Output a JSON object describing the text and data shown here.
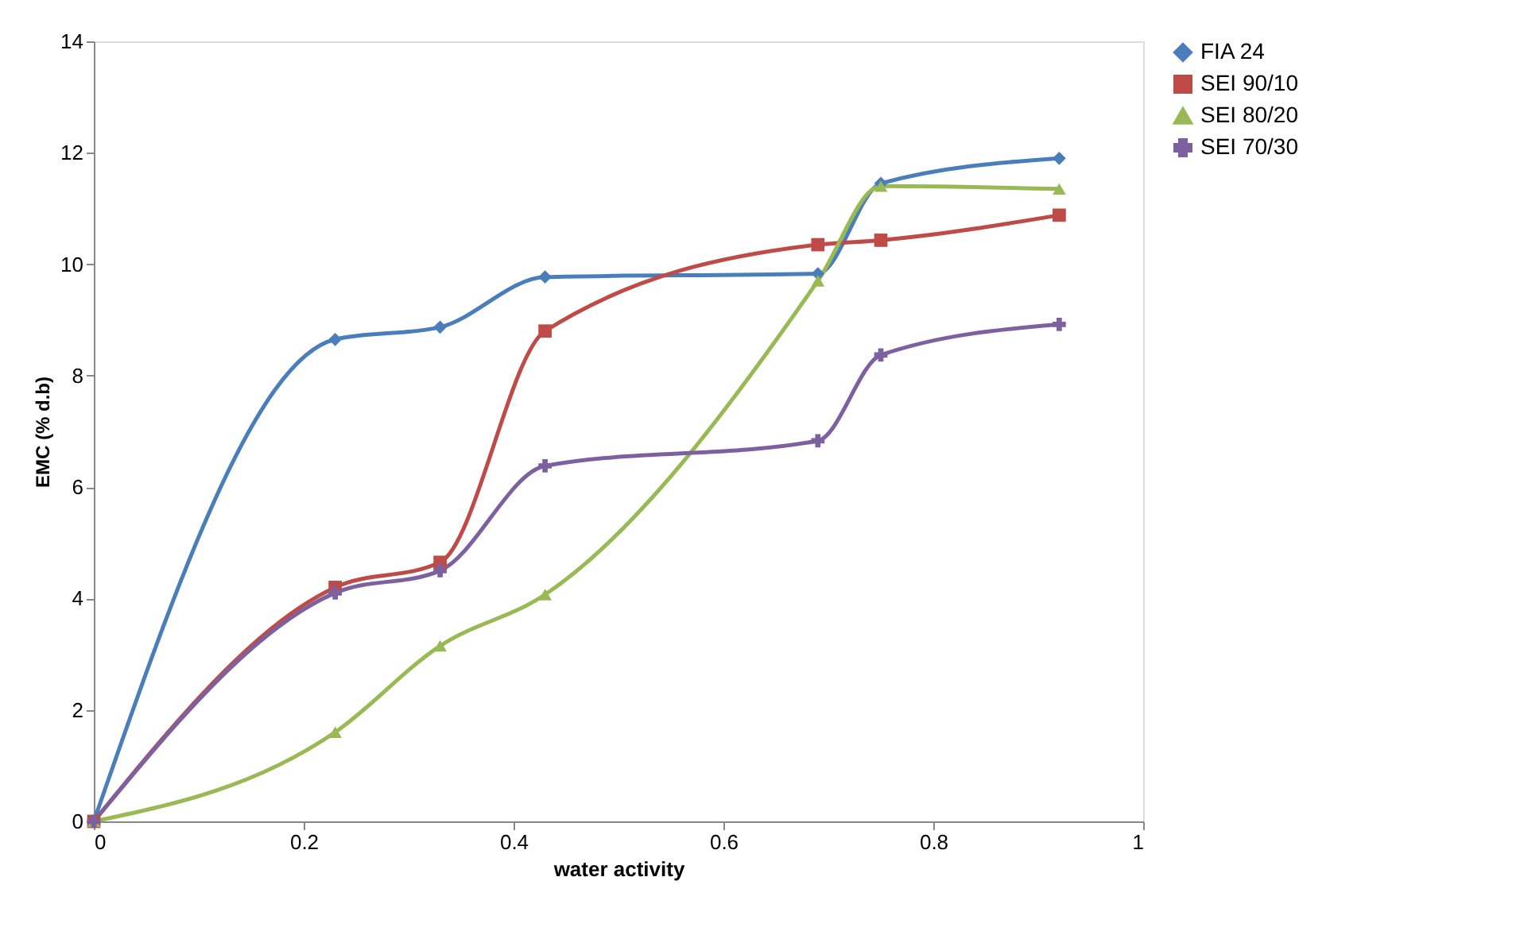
{
  "chart_data": {
    "type": "line",
    "xlabel": "water activity",
    "ylabel": "EMC (% d.b)",
    "x": [
      0,
      0.23,
      0.33,
      0.43,
      0.69,
      0.75,
      0.92
    ],
    "series": [
      {
        "name": "FIA 24",
        "color": "#4a7ebb",
        "marker": "diamond",
        "values": [
          0,
          8.65,
          8.87,
          9.77,
          9.83,
          11.45,
          11.9
        ]
      },
      {
        "name": "SEI 90/10",
        "color": "#be4b48",
        "marker": "square",
        "values": [
          0,
          4.2,
          4.65,
          8.8,
          10.35,
          10.43,
          10.88
        ]
      },
      {
        "name": "SEI 80/20",
        "color": "#98b954",
        "marker": "triangle",
        "values": [
          0,
          1.6,
          3.15,
          4.07,
          9.7,
          11.4,
          11.35
        ]
      },
      {
        "name": "SEI 70/30",
        "color": "#7d60a0",
        "marker": "cross",
        "values": [
          0,
          4.1,
          4.5,
          6.38,
          6.83,
          8.37,
          8.92
        ]
      }
    ],
    "xlim": [
      0,
      1
    ],
    "xticks": [
      0,
      0.2,
      0.4,
      0.6,
      0.8,
      1
    ],
    "ylim": [
      0,
      14
    ],
    "yticks": [
      0,
      2,
      4,
      6,
      8,
      10,
      12,
      14
    ],
    "grid": false,
    "legend": "right"
  }
}
